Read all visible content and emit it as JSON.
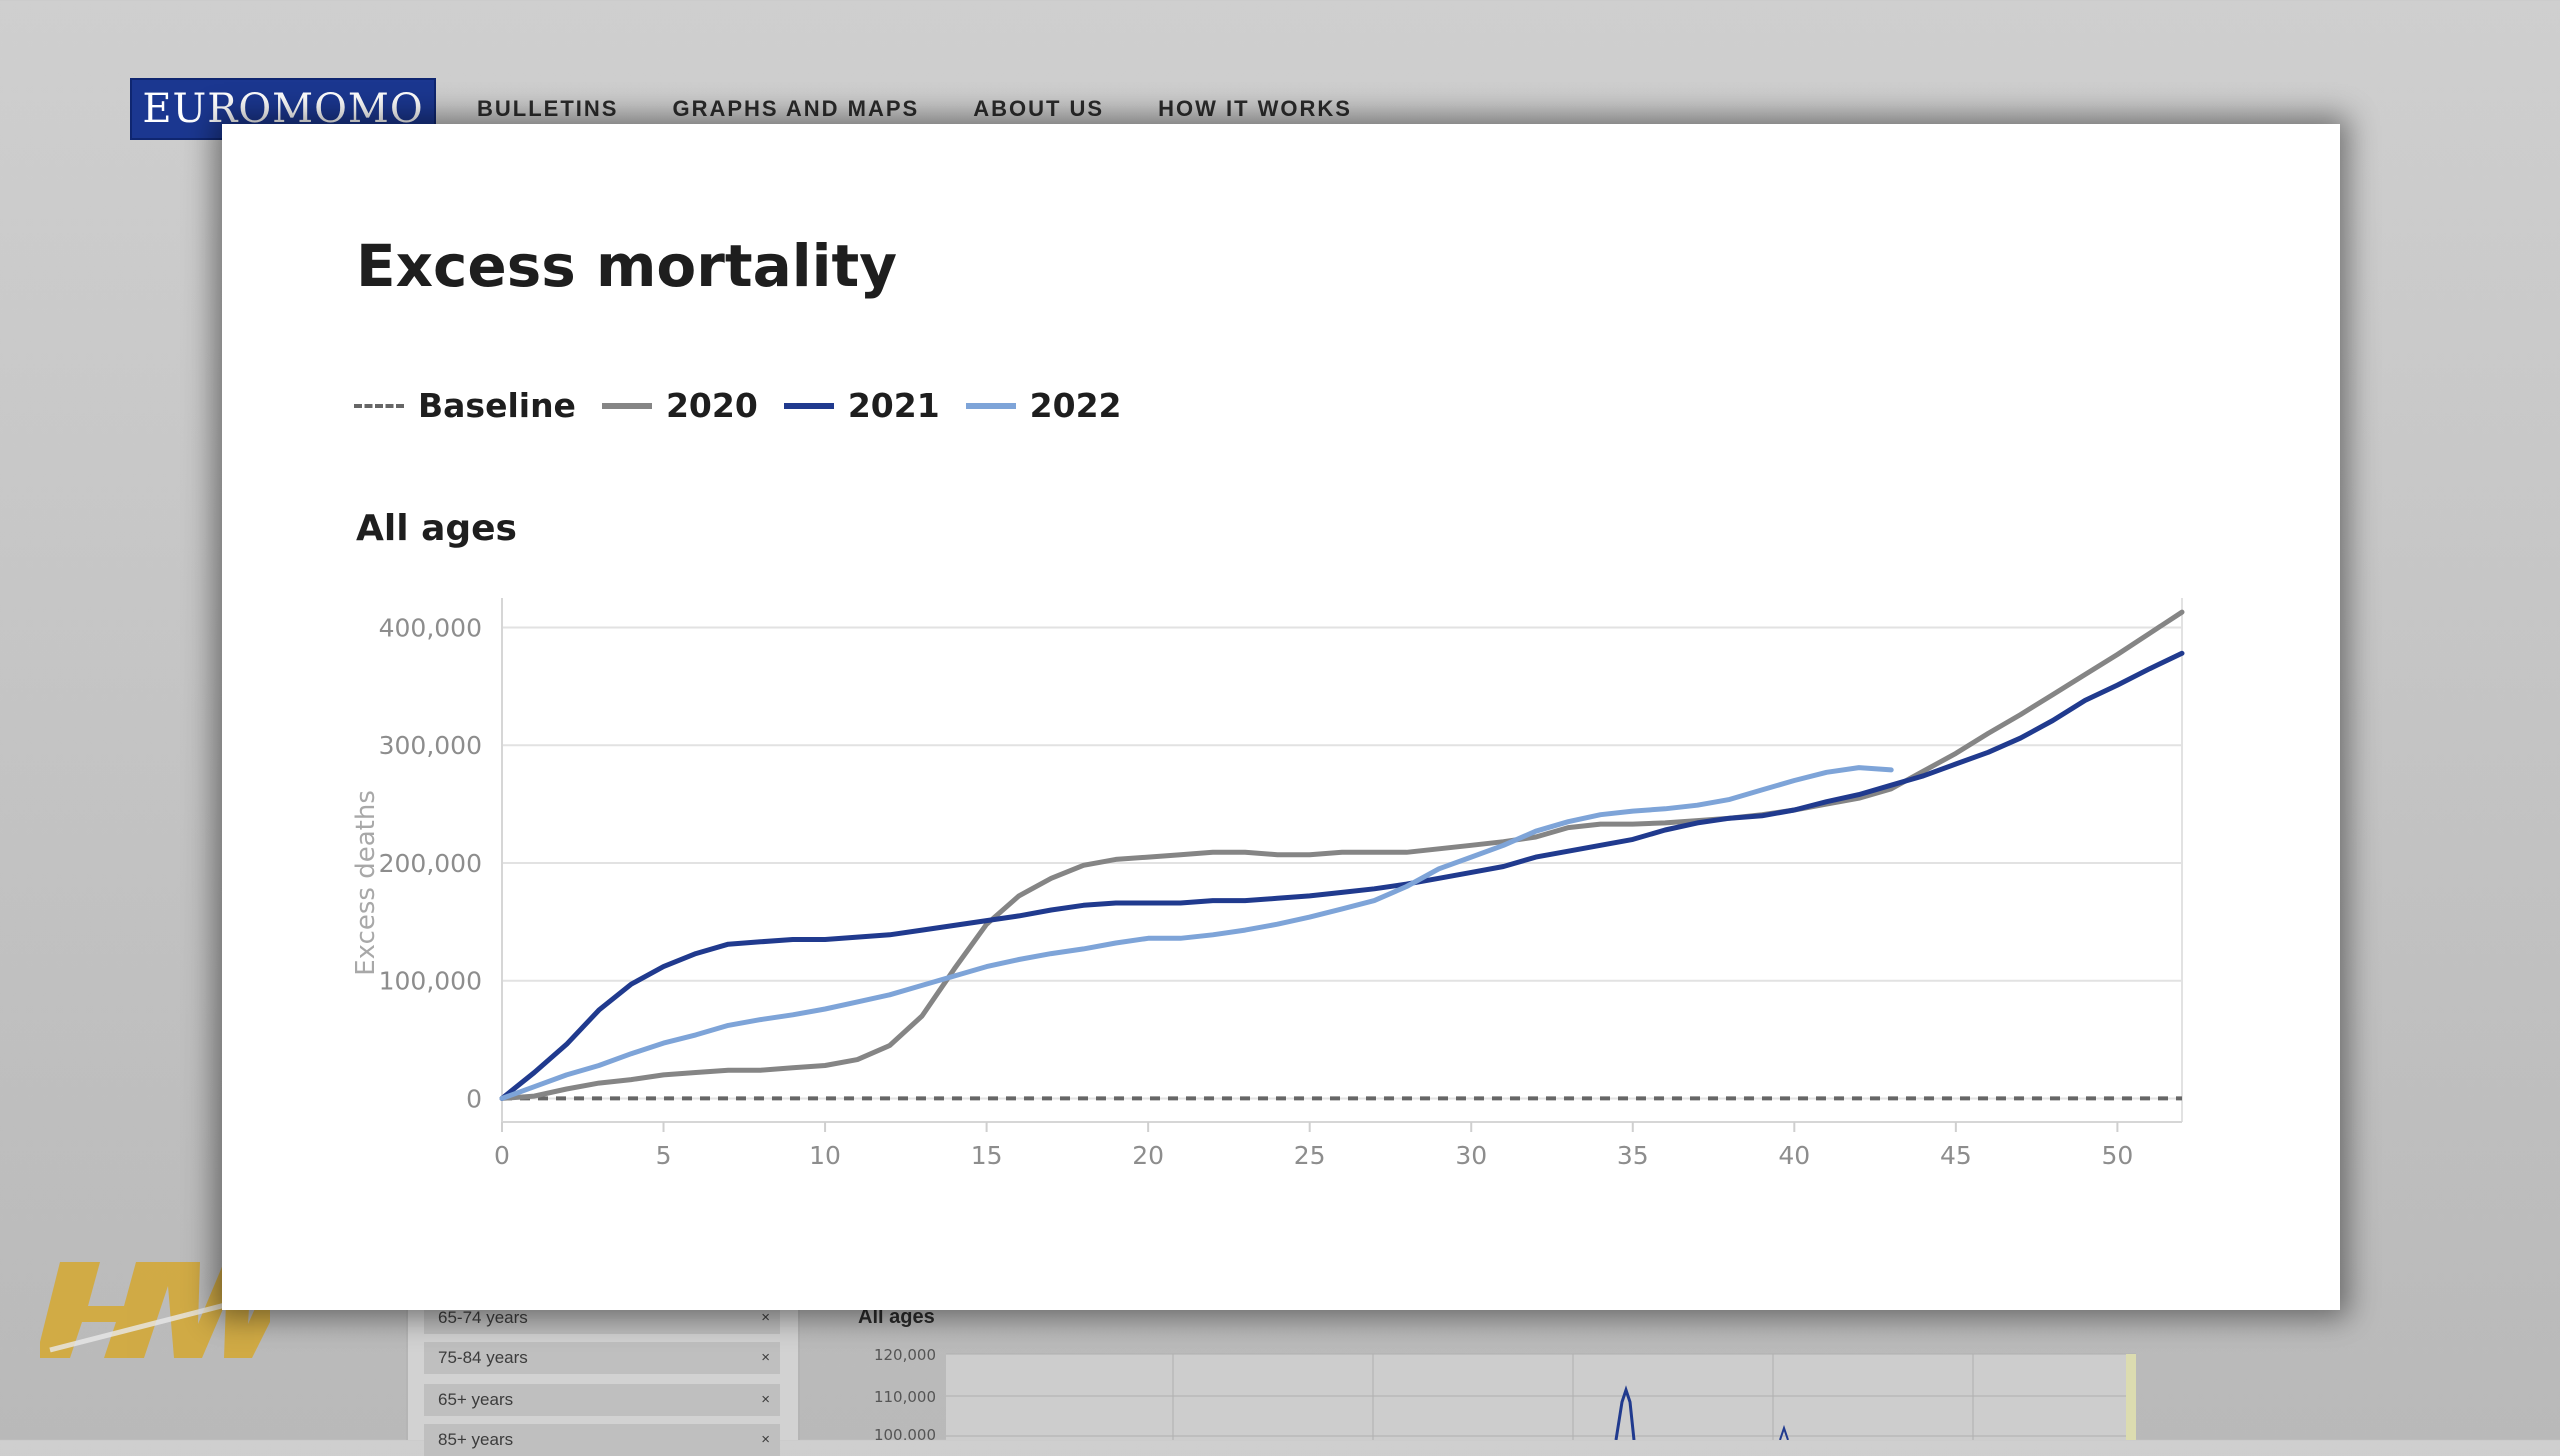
{
  "site": {
    "logo_text": "EUROMOMO",
    "nav": [
      "BULLETINS",
      "GRAPHS AND MAPS",
      "ABOUT US",
      "HOW IT WORKS"
    ],
    "brand_color": "#1b3790"
  },
  "background_panel": {
    "filters": [
      {
        "label": "65-74 years",
        "remove": "×"
      },
      {
        "label": "75-84 years",
        "remove": "×"
      },
      {
        "label": "65+ years",
        "remove": "×"
      },
      {
        "label": "85+ years",
        "remove": "×"
      }
    ],
    "mini_chart_title": "All ages",
    "mini_chart_ticks": [
      "120,000",
      "110,000",
      "100,000"
    ]
  },
  "card": {
    "title": "Excess mortality",
    "panel_title": "All ages"
  },
  "chart_data": {
    "type": "line",
    "title": "Excess mortality",
    "subtitle": "All ages",
    "xlabel": "",
    "ylabel": "Excess deaths",
    "xlim": [
      0,
      52
    ],
    "ylim": [
      -20000,
      425000
    ],
    "x_ticks": [
      0,
      5,
      10,
      15,
      20,
      25,
      30,
      35,
      40,
      45,
      50
    ],
    "x_tick_labels": [
      "0",
      "5",
      "10",
      "15",
      "20",
      "25",
      "30",
      "35",
      "40",
      "45",
      "50"
    ],
    "y_ticks": [
      0,
      100000,
      200000,
      300000,
      400000
    ],
    "y_tick_labels": [
      "0",
      "100,000",
      "200,000",
      "300,000",
      "400,000"
    ],
    "grid": "horizontal",
    "legend_position": "top-left",
    "series": [
      {
        "name": "Baseline",
        "color": "#666666",
        "dash": true,
        "x": [
          0,
          52
        ],
        "values": [
          0,
          0
        ]
      },
      {
        "name": "2020",
        "color": "#858585",
        "dash": false,
        "x": [
          0,
          1,
          2,
          3,
          4,
          5,
          6,
          7,
          8,
          9,
          10,
          11,
          12,
          13,
          14,
          15,
          16,
          17,
          18,
          19,
          20,
          21,
          22,
          23,
          24,
          25,
          26,
          27,
          28,
          29,
          30,
          31,
          32,
          33,
          34,
          35,
          36,
          37,
          38,
          39,
          40,
          41,
          42,
          43,
          44,
          45,
          46,
          47,
          48,
          49,
          50,
          51,
          52
        ],
        "values": [
          0,
          2000,
          8000,
          13000,
          16000,
          20000,
          22000,
          24000,
          24000,
          26000,
          28000,
          33000,
          45000,
          70000,
          110000,
          148000,
          172000,
          187000,
          198000,
          203000,
          205000,
          207000,
          209000,
          209000,
          207000,
          207000,
          209000,
          209000,
          209000,
          212000,
          215000,
          218000,
          222000,
          230000,
          233000,
          233000,
          234000,
          236000,
          238000,
          241000,
          245000,
          250000,
          255000,
          263000,
          278000,
          293000,
          310000,
          326000,
          343000,
          360000,
          377000,
          395000,
          413000
        ]
      },
      {
        "name": "2021",
        "color": "#203a8e",
        "dash": false,
        "x": [
          0,
          1,
          2,
          3,
          4,
          5,
          6,
          7,
          8,
          9,
          10,
          11,
          12,
          13,
          14,
          15,
          16,
          17,
          18,
          19,
          20,
          21,
          22,
          23,
          24,
          25,
          26,
          27,
          28,
          29,
          30,
          31,
          32,
          33,
          34,
          35,
          36,
          37,
          38,
          39,
          40,
          41,
          42,
          43,
          44,
          45,
          46,
          47,
          48,
          49,
          50,
          51,
          52
        ],
        "values": [
          0,
          22000,
          46000,
          75000,
          97000,
          112000,
          123000,
          131000,
          133000,
          135000,
          135000,
          137000,
          139000,
          143000,
          147000,
          151000,
          155000,
          160000,
          164000,
          166000,
          166000,
          166000,
          168000,
          168000,
          170000,
          172000,
          175000,
          178000,
          182000,
          187000,
          192000,
          197000,
          205000,
          210000,
          215000,
          220000,
          228000,
          234000,
          238000,
          240000,
          245000,
          252000,
          258000,
          266000,
          274000,
          284000,
          294000,
          306000,
          321000,
          338000,
          351000,
          365000,
          378000
        ]
      },
      {
        "name": "2022",
        "color": "#7ea4d8",
        "dash": false,
        "x": [
          0,
          1,
          2,
          3,
          4,
          5,
          6,
          7,
          8,
          9,
          10,
          11,
          12,
          13,
          14,
          15,
          16,
          17,
          18,
          19,
          20,
          21,
          22,
          23,
          24,
          25,
          26,
          27,
          28,
          29,
          30,
          31,
          32,
          33,
          34,
          35,
          36,
          37,
          38,
          39,
          40,
          41,
          42,
          43
        ],
        "values": [
          0,
          10000,
          20000,
          28000,
          38000,
          47000,
          54000,
          62000,
          67000,
          71000,
          76000,
          82000,
          88000,
          96000,
          104000,
          112000,
          118000,
          123000,
          127000,
          132000,
          136000,
          136000,
          139000,
          143000,
          148000,
          154000,
          161000,
          168000,
          180000,
          195000,
          205000,
          215000,
          227000,
          235000,
          241000,
          244000,
          246000,
          249000,
          254000,
          262000,
          270000,
          277000,
          281000,
          279000
        ]
      }
    ]
  }
}
